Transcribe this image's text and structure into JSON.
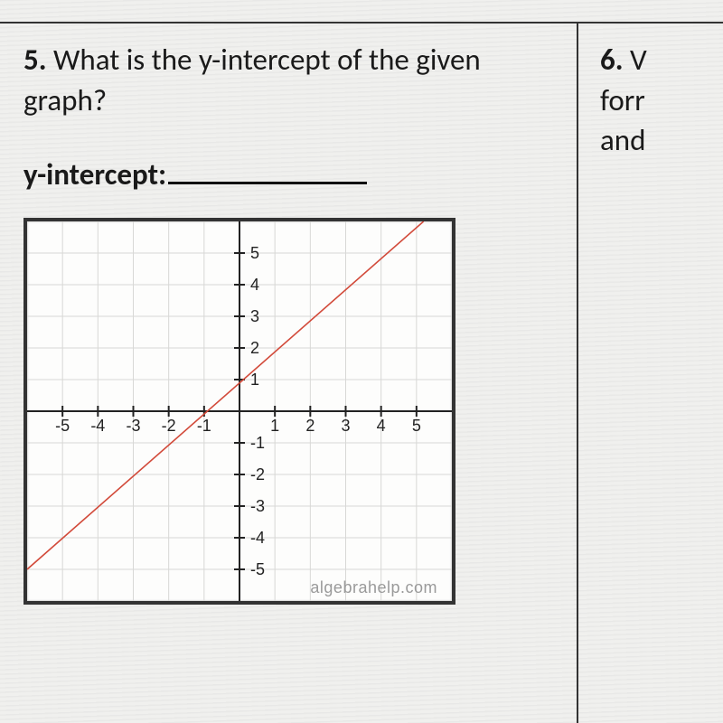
{
  "q5": {
    "number": "5.",
    "text": "What is the y-intercept of the given graph?",
    "answer_label": "y-intercept:"
  },
  "q6": {
    "number": "6.",
    "partial_text": "V",
    "line2": "forr",
    "line3": "and"
  },
  "graph": {
    "type": "line",
    "xlim": [
      -6,
      6
    ],
    "ylim": [
      -6,
      6
    ],
    "xtick_labels": [
      "-5",
      "-4",
      "-3",
      "-2",
      "-1",
      "1",
      "2",
      "3",
      "4",
      "5"
    ],
    "xtick_vals": [
      -5,
      -4,
      -3,
      -2,
      -1,
      1,
      2,
      3,
      4,
      5
    ],
    "ytick_labels": [
      "5",
      "4",
      "3",
      "2",
      "1",
      "-1",
      "-2",
      "-3",
      "-4",
      "-5"
    ],
    "ytick_vals": [
      5,
      4,
      3,
      2,
      1,
      -1,
      -2,
      -3,
      -4,
      -5
    ],
    "grid_color": "#d8d8d6",
    "axis_color": "#222222",
    "tick_label_color": "#222222",
    "tick_label_fontsize": 18,
    "background_color": "#fdfdfc",
    "line": {
      "color": "#d24a3a",
      "width": 1.6,
      "p1": [
        -6,
        -5
      ],
      "p2": [
        5.2,
        6
      ]
    },
    "watermark": "algebrahelp.com",
    "watermark_color": "#9a9a9a",
    "border_color": "#333333"
  }
}
